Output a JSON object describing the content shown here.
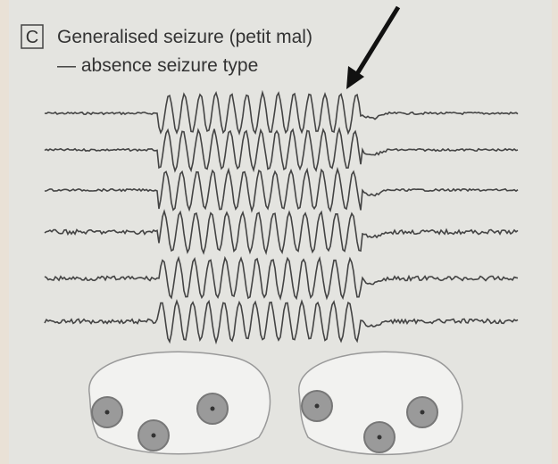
{
  "panel": {
    "label": "C",
    "title": "Generalised seizure (petit mal)",
    "subtitle": "— absence seizure type"
  }
}
